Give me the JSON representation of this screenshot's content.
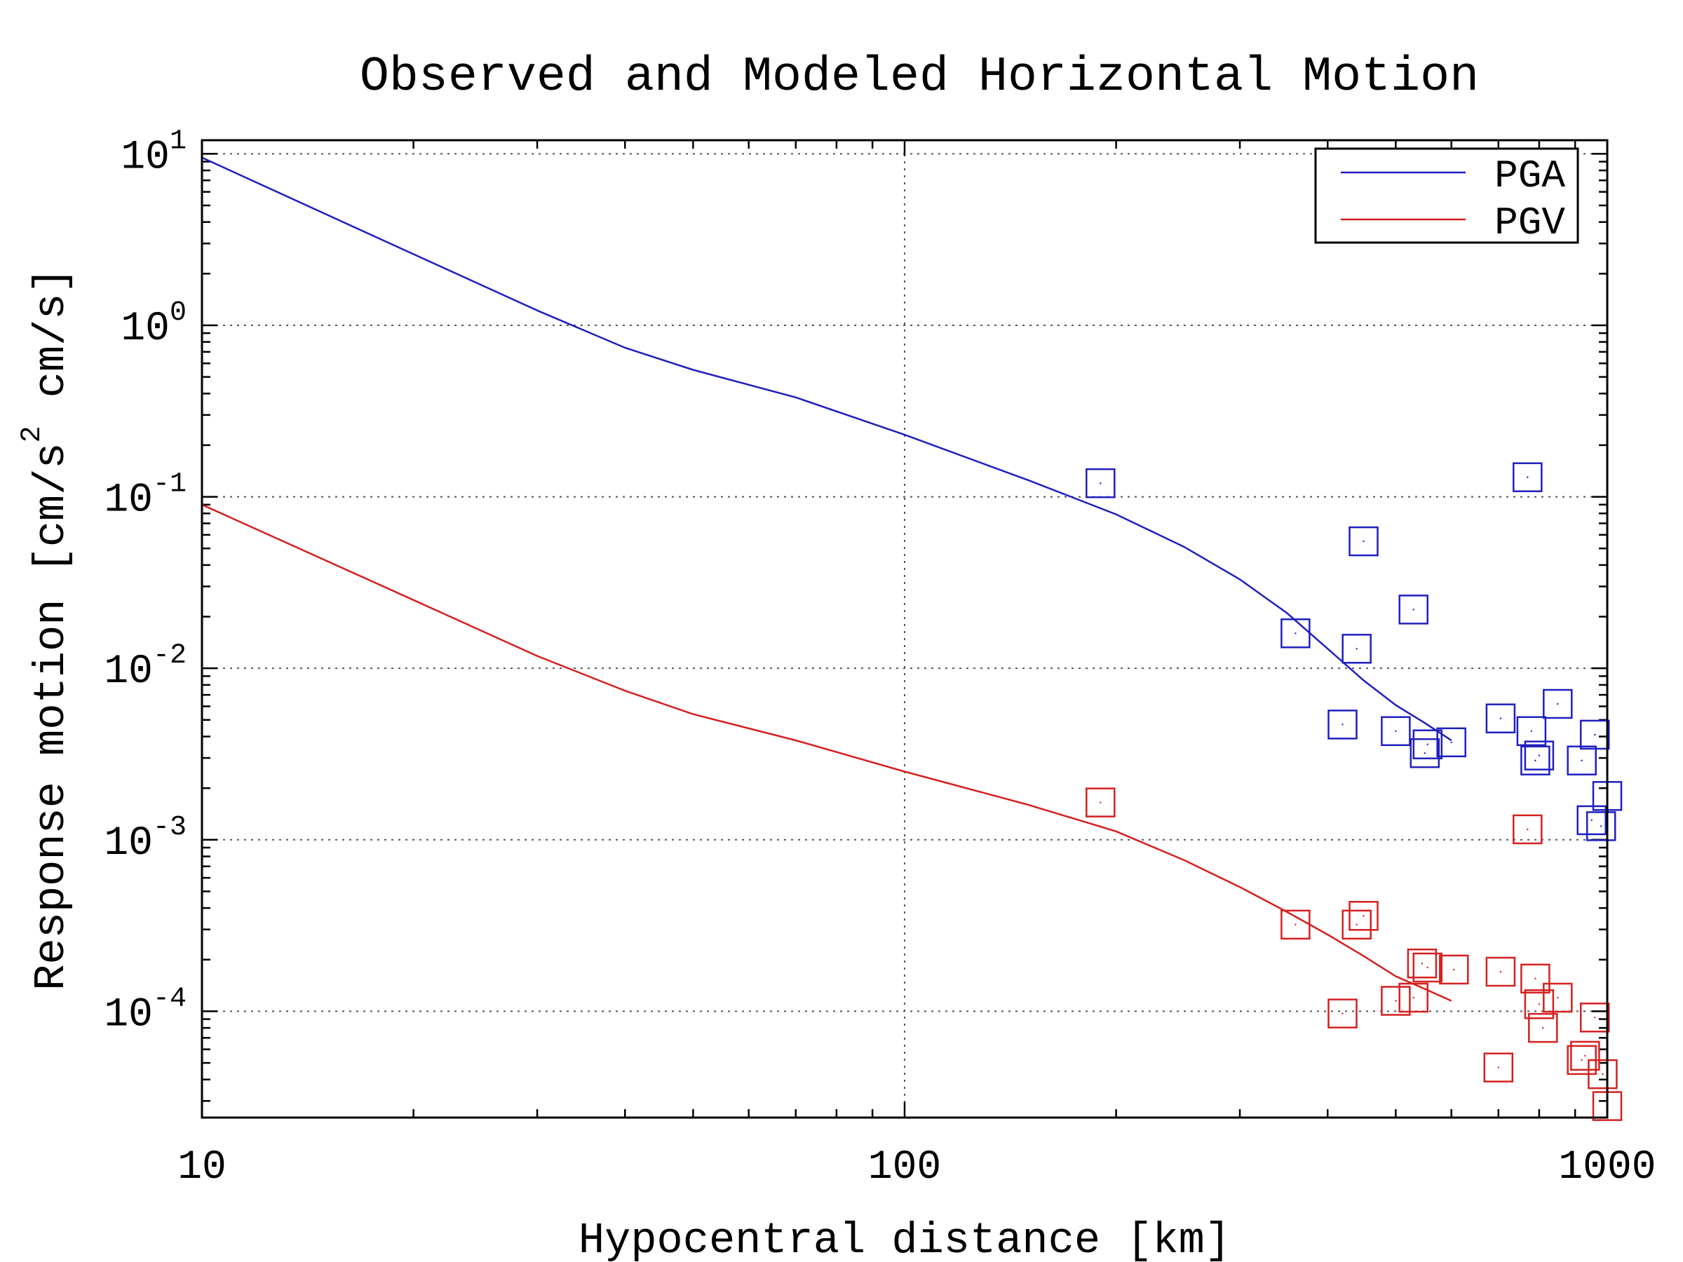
{
  "chart_data": {
    "type": "scatter",
    "title": "Observed and Modeled Horizontal Motion",
    "xlabel": "Hypocentral distance [km]",
    "ylabel": {
      "part1": "Response motion [cm/s",
      "superscript": "2",
      "part2": "cm/s]"
    },
    "xscale": "log",
    "yscale": "log",
    "xlim": [
      10,
      1000
    ],
    "ylim": [
      2.4e-05,
      12
    ],
    "x_ticks": [
      {
        "value": 10,
        "label": "10"
      },
      {
        "value": 100,
        "label": "100"
      },
      {
        "value": 1000,
        "label": "1000"
      }
    ],
    "y_ticks": [
      {
        "value": 10,
        "base": "10",
        "exp": "1"
      },
      {
        "value": 1,
        "base": "10",
        "exp": "0"
      },
      {
        "value": 0.1,
        "base": "10",
        "exp": "-1"
      },
      {
        "value": 0.01,
        "base": "10",
        "exp": "-2"
      },
      {
        "value": 0.001,
        "base": "10",
        "exp": "-3"
      },
      {
        "value": 0.0001,
        "base": "10",
        "exp": "-4"
      }
    ],
    "grid": true,
    "legend_position": "top-right",
    "series": [
      {
        "name": "PGA",
        "color": "#1f1fbf",
        "model": {
          "x": [
            10,
            20,
            30,
            40,
            50,
            70,
            100,
            150,
            200,
            250,
            300,
            350,
            400,
            450,
            500,
            550,
            600
          ],
          "y": [
            9.5,
            2.6,
            1.22,
            0.74,
            0.55,
            0.38,
            0.23,
            0.125,
            0.079,
            0.051,
            0.033,
            0.021,
            0.013,
            0.0085,
            0.0061,
            0.0048,
            0.0038
          ]
        },
        "observed": {
          "x": [
            190,
            360,
            420,
            440,
            450,
            500,
            530,
            550,
            555,
            600,
            705,
            770,
            780,
            790,
            800,
            850,
            920,
            950,
            960,
            980,
            1000
          ],
          "y": [
            0.12,
            0.016,
            0.0047,
            0.013,
            0.055,
            0.0043,
            0.022,
            0.0032,
            0.0036,
            0.0037,
            0.0051,
            0.13,
            0.0043,
            0.0029,
            0.0031,
            0.0062,
            0.0029,
            0.0013,
            0.0041,
            0.0012,
            0.0018
          ]
        }
      },
      {
        "name": "PGV",
        "color": "#d42020",
        "model": {
          "x": [
            10,
            20,
            30,
            40,
            50,
            70,
            100,
            150,
            200,
            250,
            300,
            350,
            400,
            450,
            500,
            550,
            600
          ],
          "y": [
            0.09,
            0.025,
            0.0118,
            0.0074,
            0.0054,
            0.0038,
            0.0025,
            0.0016,
            0.00112,
            0.00076,
            0.00053,
            0.00038,
            0.00028,
            0.00021,
            0.00016,
            0.000135,
            0.000115
          ]
        },
        "observed": {
          "x": [
            190,
            360,
            420,
            440,
            450,
            500,
            530,
            545,
            555,
            605,
            700,
            705,
            770,
            790,
            800,
            810,
            850,
            920,
            930,
            960,
            985,
            1000
          ],
          "y": [
            0.00165,
            0.00032,
            9.7e-05,
            0.00032,
            0.00036,
            0.000115,
            0.00012,
            0.00019,
            0.00018,
            0.000175,
            4.7e-05,
            0.00017,
            0.00115,
            0.000155,
            0.00011,
            8e-05,
            0.00012,
            5.2e-05,
            5.5e-05,
            9.2e-05,
            4.3e-05,
            2.8e-05
          ]
        }
      }
    ]
  }
}
